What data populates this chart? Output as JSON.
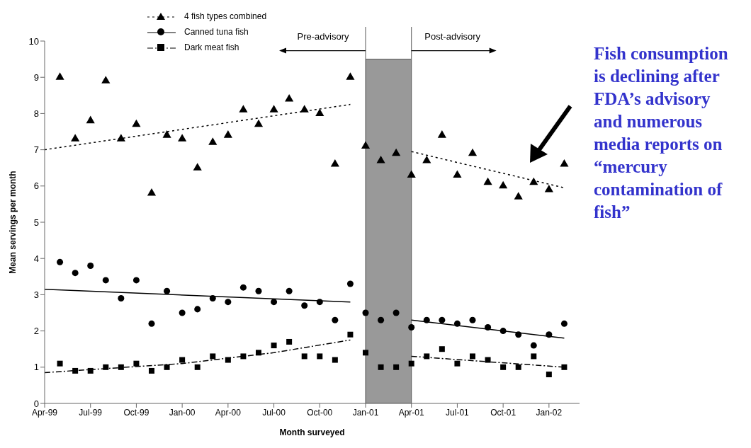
{
  "chart_data": {
    "type": "scatter",
    "xlabel": "Month surveyed",
    "ylabel": "Mean servings per month",
    "x": [
      "1999-05",
      "1999-06",
      "1999-07",
      "1999-08",
      "1999-09",
      "1999-10",
      "1999-11",
      "1999-12",
      "2000-01",
      "2000-02",
      "2000-03",
      "2000-04",
      "2000-05",
      "2000-06",
      "2000-07",
      "2000-08",
      "2000-09",
      "2000-10",
      "2000-11",
      "2000-12",
      "2001-01",
      "2001-02",
      "2001-03",
      "2001-04",
      "2001-05",
      "2001-06",
      "2001-07",
      "2001-08",
      "2001-09",
      "2001-10",
      "2001-11",
      "2001-12",
      "2002-01",
      "2002-02"
    ],
    "series": [
      {
        "name": "4 fish types combined",
        "color": "#000000",
        "marker": "triangle",
        "line_style": "dotted",
        "values": [
          9.0,
          7.3,
          7.8,
          8.9,
          7.3,
          7.7,
          5.8,
          7.4,
          7.3,
          6.5,
          7.2,
          7.4,
          8.1,
          7.7,
          8.1,
          8.4,
          8.1,
          8.0,
          6.6,
          9.0,
          7.1,
          6.7,
          6.9,
          6.3,
          6.7,
          7.4,
          6.3,
          6.9,
          6.1,
          6.0,
          5.7,
          6.1,
          5.9,
          6.6
        ]
      },
      {
        "name": "Canned tuna fish",
        "color": "#000000",
        "marker": "circle",
        "line_style": "solid",
        "values": [
          3.9,
          3.6,
          3.8,
          3.4,
          2.9,
          3.4,
          2.2,
          3.1,
          2.5,
          2.6,
          2.9,
          2.8,
          3.2,
          3.1,
          2.8,
          3.1,
          2.7,
          2.8,
          2.3,
          3.3,
          2.5,
          2.3,
          2.5,
          2.1,
          2.3,
          2.3,
          2.2,
          2.3,
          2.1,
          2.0,
          1.9,
          1.6,
          1.9,
          2.2
        ]
      },
      {
        "name": "Dark meat fish",
        "color": "#000000",
        "marker": "square",
        "line_style": "dashed",
        "values": [
          1.1,
          0.9,
          0.9,
          1.0,
          1.0,
          1.1,
          0.9,
          1.0,
          1.2,
          1.0,
          1.3,
          1.2,
          1.3,
          1.4,
          1.6,
          1.7,
          1.3,
          1.3,
          1.2,
          1.9,
          1.4,
          1.0,
          1.0,
          1.1,
          1.3,
          1.5,
          1.1,
          1.3,
          1.2,
          1.0,
          1.0,
          1.3,
          0.8,
          1.0
        ]
      },
      {
        "type": "line",
        "color": "#000000",
        "line_style": "dotted",
        "x": [
          "1999-04",
          "2000-12"
        ],
        "values": [
          7.0,
          8.25
        ]
      },
      {
        "type": "line",
        "color": "#000000",
        "line_style": "dotted",
        "x": [
          "2001-04",
          "2002-02"
        ],
        "values": [
          6.95,
          5.95
        ]
      },
      {
        "type": "line",
        "color": "#000000",
        "line_style": "solid",
        "x": [
          "1999-04",
          "2000-12"
        ],
        "values": [
          3.15,
          2.8
        ]
      },
      {
        "type": "line",
        "color": "#000000",
        "line_style": "solid",
        "x": [
          "2001-04",
          "2002-02"
        ],
        "values": [
          2.3,
          1.8
        ]
      },
      {
        "type": "line",
        "color": "#000000",
        "line_style": "dashed",
        "x": [
          "1999-04",
          "2000-01",
          "2000-07",
          "2000-12"
        ],
        "values": [
          0.85,
          1.1,
          1.4,
          1.75
        ]
      },
      {
        "type": "line",
        "color": "#000000",
        "line_style": "dashed",
        "x": [
          "2001-04",
          "2002-02"
        ],
        "values": [
          1.3,
          1.0
        ]
      }
    ],
    "xlim": [
      "1999-04",
      "2002-03"
    ],
    "xticks": [
      {
        "value": "1999-04",
        "label": "Apr-99"
      },
      {
        "value": "1999-07",
        "label": "Jul-99"
      },
      {
        "value": "1999-10",
        "label": "Oct-99"
      },
      {
        "value": "2000-01",
        "label": "Jan-00"
      },
      {
        "value": "2000-04",
        "label": "Apr-00"
      },
      {
        "value": "2000-07",
        "label": "Jul-00"
      },
      {
        "value": "2000-10",
        "label": "Oct-00"
      },
      {
        "value": "2001-01",
        "label": "Jan-01"
      },
      {
        "value": "2001-04",
        "label": "Apr-01"
      },
      {
        "value": "2001-07",
        "label": "Jul-01"
      },
      {
        "value": "2001-10",
        "label": "Oct-01"
      },
      {
        "value": "2002-01",
        "label": "Jan-02"
      }
    ],
    "ylim": [
      0,
      10
    ],
    "yticks": [
      0,
      1,
      2,
      3,
      4,
      5,
      6,
      7,
      8,
      9,
      10
    ],
    "grid": false,
    "legend": "top",
    "bands": [
      {
        "axis": "x",
        "from": "2001-01",
        "to": "2001-04",
        "color": "#999999"
      }
    ],
    "annotations": [
      "Pre-advisory",
      "Post-advisory",
      "Fish consumption is declining after FDA’s advisory and numerous media reports on “mercury contamination of fish”"
    ]
  }
}
